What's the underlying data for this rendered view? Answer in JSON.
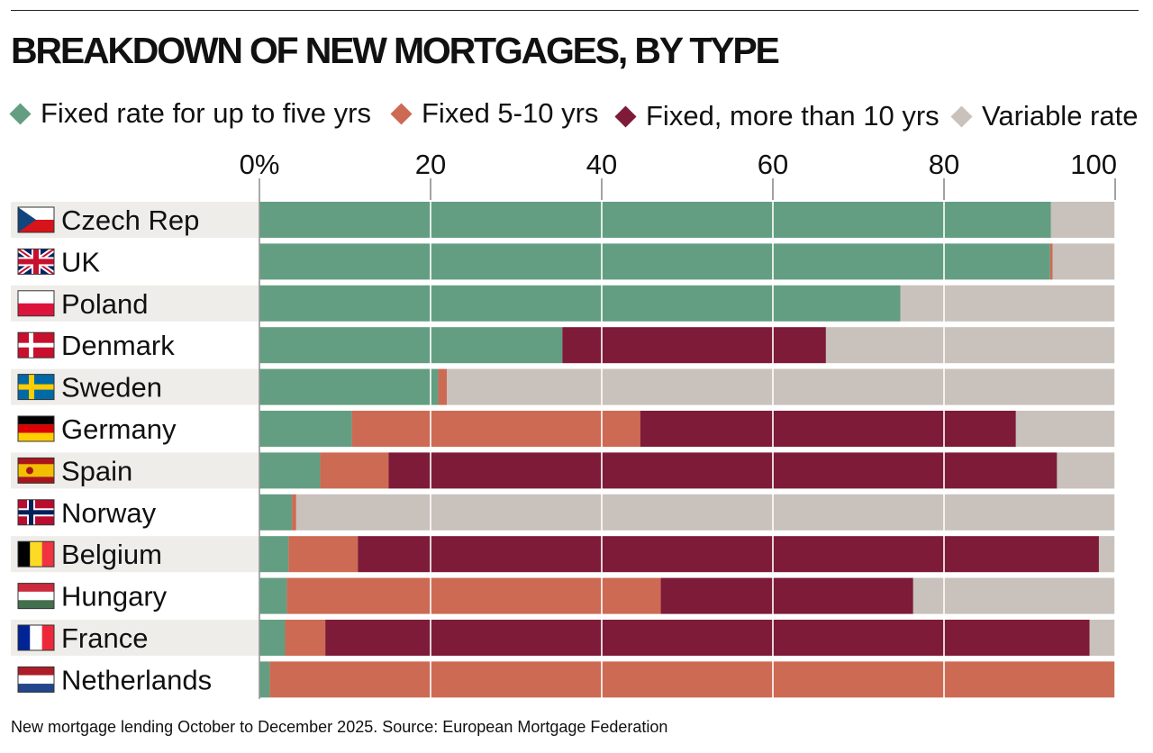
{
  "title": "BREAKDOWN OF NEW MORTGAGES, BY TYPE",
  "footer": "New mortgage lending October to December 2025. Source: European Mortgage Federation",
  "colors": {
    "fixed_up_to_5": "#639e82",
    "fixed_5_10": "#cd6a53",
    "fixed_over_10": "#7d1b38",
    "variable": "#c9c1bb",
    "row_band": "#efedea"
  },
  "chart_data": {
    "type": "bar",
    "orientation": "horizontal",
    "stacked": true,
    "xlim": [
      0,
      100
    ],
    "xticks": [
      "0%",
      "20",
      "40",
      "60",
      "80",
      "100"
    ],
    "grid": true,
    "legend_position": "top",
    "categories": [
      "Czech Rep",
      "UK",
      "Poland",
      "Denmark",
      "Sweden",
      "Germany",
      "Spain",
      "Norway",
      "Belgium",
      "Hungary",
      "France",
      "Netherlands"
    ],
    "flags": [
      "czech-flag-icon",
      "uk-flag-icon",
      "poland-flag-icon",
      "denmark-flag-icon",
      "sweden-flag-icon",
      "germany-flag-icon",
      "spain-flag-icon",
      "norway-flag-icon",
      "belgium-flag-icon",
      "hungary-flag-icon",
      "france-flag-icon",
      "netherlands-flag-icon"
    ],
    "series": [
      {
        "name": "Fixed rate for up to five yrs",
        "key": "fixed_up_to_5",
        "values": [
          92.5,
          92.4,
          74.9,
          35.4,
          20.9,
          10.8,
          7.1,
          3.8,
          3.4,
          3.2,
          3.0,
          1.2
        ]
      },
      {
        "name": "Fixed 5-10 yrs",
        "key": "fixed_5_10",
        "values": [
          0.0,
          0.3,
          0.0,
          0.0,
          1.0,
          33.7,
          8.0,
          0.5,
          8.1,
          43.7,
          4.7,
          98.8
        ]
      },
      {
        "name": "Fixed, more than 10 yrs",
        "key": "fixed_over_10",
        "values": [
          0.0,
          0.0,
          0.0,
          30.8,
          0.0,
          43.9,
          78.1,
          0.0,
          86.6,
          29.5,
          89.3,
          0.0
        ]
      },
      {
        "name": "Variable rate",
        "key": "variable",
        "values": [
          7.5,
          7.3,
          25.1,
          33.8,
          78.1,
          11.6,
          6.8,
          95.7,
          1.9,
          23.6,
          3.0,
          0.0
        ]
      }
    ]
  }
}
